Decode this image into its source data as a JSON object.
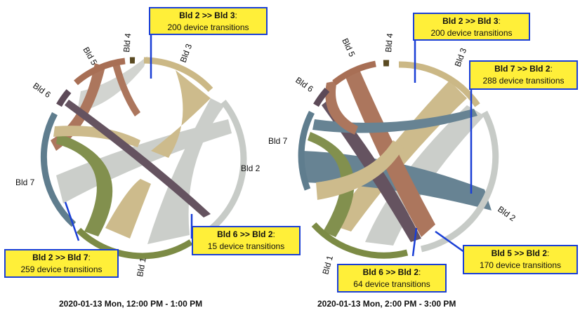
{
  "colors": {
    "Bld 1": "#c9cbc7",
    "Bld 2": "#c7cbc7",
    "Bld 3": "#cbb886",
    "Bld 4": "#5a4a22",
    "Bld 5": "#a86f55",
    "Bld 6": "#5d4a58",
    "Bld 7": "#5f7d8e",
    "green": "#7c8b45",
    "callout_bg": "#ffef39",
    "callout_border": "#1a3fd6"
  },
  "diagrams": [
    {
      "caption": "2020-01-13 Mon, 12:00 PM - 1:00 PM",
      "labels": [
        "Bld 1",
        "Bld 2",
        "Bld 3",
        "Bld 4",
        "Bld 5",
        "Bld 6",
        "Bld 7"
      ],
      "callouts": [
        {
          "title": "Bld 2 >> Bld 3",
          "text": "200 device transitions"
        },
        {
          "title": "Bld 6 >> Bld 2",
          "text": "15 device transitions"
        },
        {
          "title": "Bld 2 >> Bld 7",
          "text": "259 device transitions"
        }
      ]
    },
    {
      "caption": "2020-01-13 Mon, 2:00 PM - 3:00 PM",
      "labels": [
        "Bld 1",
        "Bld 2",
        "Bld 3",
        "Bld 4",
        "Bld 5",
        "Bld 6",
        "Bld 7"
      ],
      "callouts": [
        {
          "title": "Bld 2 >> Bld 3",
          "text": "200 device transitions"
        },
        {
          "title": "Bld 7 >> Bld 2",
          "text": "288 device transitions"
        },
        {
          "title": "Bld 6 >> Bld 2",
          "text": "64 device transitions"
        },
        {
          "title": "Bld 5 >> Bld 2",
          "text": "170 device transitions"
        }
      ]
    }
  ]
}
